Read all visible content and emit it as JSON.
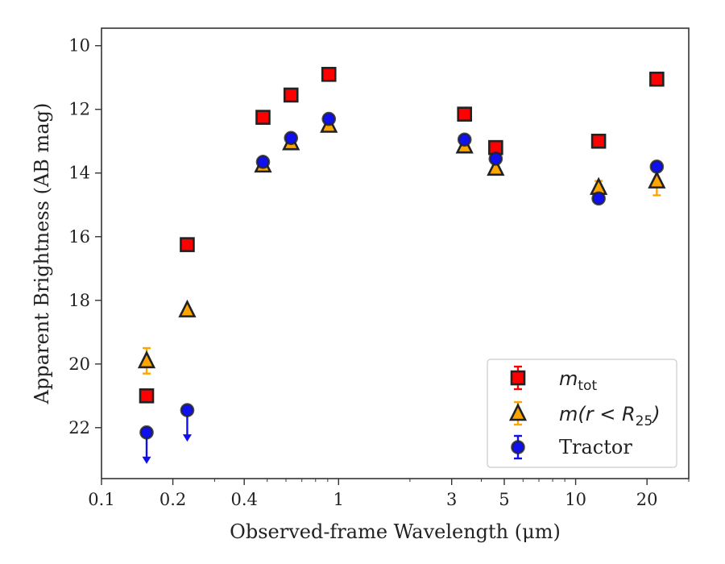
{
  "chart_data": {
    "type": "scatter",
    "xlabel": "Observed-frame Wavelength (μm)",
    "ylabel": "Apparent Brightness (AB mag)",
    "xscale": "log",
    "xlim": [
      0.1,
      30
    ],
    "ylim": [
      23.6,
      9.45
    ],
    "y_inverted": true,
    "x_ticks": [
      0.1,
      0.2,
      0.4,
      1,
      3,
      5,
      10,
      20
    ],
    "x_tick_labels": [
      "0.1",
      "0.2",
      "0.4",
      "1",
      "3",
      "5",
      "10",
      "20"
    ],
    "y_ticks": [
      10,
      12,
      14,
      16,
      18,
      20,
      22
    ],
    "y_tick_labels": [
      "10",
      "12",
      "14",
      "16",
      "18",
      "20",
      "22"
    ],
    "grid": false,
    "legend_position": "bottom-right",
    "colors": {
      "mtot": "#ff0000",
      "mr": "#ffa500",
      "tractor": "#1010ee",
      "edge": "#222222"
    },
    "series": [
      {
        "key": "mtot",
        "name_main": "m",
        "name_sub": "tot",
        "marker": "square",
        "x": [
          0.155,
          0.23,
          0.48,
          0.63,
          0.91,
          3.4,
          4.6,
          12.5,
          22.0
        ],
        "y": [
          21.0,
          16.25,
          12.25,
          11.55,
          10.9,
          12.15,
          13.2,
          13.0,
          11.05
        ],
        "yerr": [
          0.05,
          0.05,
          0.05,
          0.05,
          0.05,
          0.05,
          0.05,
          0.05,
          0.05
        ]
      },
      {
        "key": "mr",
        "name": "m(r < R25)",
        "name_main": "m(r < R",
        "name_sub": "25",
        "name_end": ")",
        "marker": "triangle",
        "x": [
          0.155,
          0.23,
          0.48,
          0.63,
          0.91,
          3.4,
          4.6,
          12.5,
          22.0
        ],
        "y": [
          19.9,
          18.3,
          13.75,
          13.05,
          12.5,
          13.15,
          13.85,
          14.45,
          14.25
        ],
        "yerr": [
          0.4,
          0.05,
          0.05,
          0.05,
          0.05,
          0.05,
          0.05,
          0.2,
          0.45
        ]
      },
      {
        "key": "tractor",
        "name": "Tractor",
        "marker": "circle",
        "x": [
          0.155,
          0.23,
          0.48,
          0.63,
          0.91,
          3.4,
          4.6,
          12.5,
          22.0
        ],
        "y": [
          22.15,
          21.45,
          13.65,
          12.9,
          12.3,
          12.95,
          13.55,
          14.8,
          13.8
        ],
        "yerr": [
          0.05,
          0.05,
          0.05,
          0.05,
          0.05,
          0.05,
          0.05,
          0.05,
          0.05
        ],
        "upper_limit": [
          true,
          true,
          false,
          false,
          false,
          false,
          false,
          false,
          false
        ]
      }
    ]
  }
}
